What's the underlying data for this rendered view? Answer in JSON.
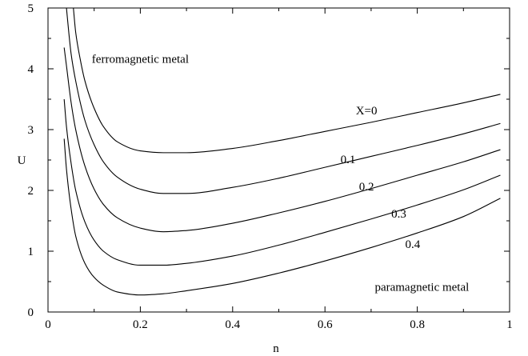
{
  "chart_data": {
    "type": "line",
    "title": "",
    "xlabel": "n",
    "ylabel": "U",
    "xlim": [
      0,
      1
    ],
    "ylim": [
      0,
      5
    ],
    "xticks": [
      "0",
      "0.2",
      "0.4",
      "0.6",
      "0.8",
      "1"
    ],
    "yticks": [
      "0",
      "1",
      "2",
      "3",
      "4",
      "5"
    ],
    "grid": false,
    "legend": "none",
    "series": [
      {
        "name": "X=0",
        "x": [
          0.055,
          0.06,
          0.07,
          0.08,
          0.1,
          0.12,
          0.15,
          0.2,
          0.25,
          0.3,
          0.4,
          0.5,
          0.6,
          0.7,
          0.8,
          0.9,
          0.98
        ],
        "y": [
          5.0,
          4.6,
          4.15,
          3.8,
          3.35,
          3.05,
          2.8,
          2.65,
          2.62,
          2.62,
          2.69,
          2.82,
          2.97,
          3.12,
          3.28,
          3.44,
          3.58
        ]
      },
      {
        "name": "0.1",
        "x": [
          0.04,
          0.045,
          0.05,
          0.06,
          0.08,
          0.1,
          0.12,
          0.15,
          0.2,
          0.25,
          0.3,
          0.4,
          0.5,
          0.6,
          0.7,
          0.8,
          0.9,
          0.98
        ],
        "y": [
          5.0,
          4.6,
          4.25,
          3.8,
          3.15,
          2.75,
          2.47,
          2.22,
          2.02,
          1.95,
          1.95,
          2.05,
          2.2,
          2.38,
          2.56,
          2.74,
          2.93,
          3.1
        ]
      },
      {
        "name": "0.2",
        "x": [
          0.035,
          0.04,
          0.05,
          0.06,
          0.08,
          0.1,
          0.12,
          0.15,
          0.2,
          0.25,
          0.3,
          0.4,
          0.5,
          0.6,
          0.7,
          0.8,
          0.9,
          0.98
        ],
        "y": [
          4.35,
          4.05,
          3.45,
          3.0,
          2.4,
          2.02,
          1.77,
          1.55,
          1.38,
          1.32,
          1.34,
          1.46,
          1.63,
          1.82,
          2.03,
          2.25,
          2.47,
          2.67
        ]
      },
      {
        "name": "0.3",
        "x": [
          0.035,
          0.04,
          0.05,
          0.06,
          0.08,
          0.1,
          0.12,
          0.15,
          0.2,
          0.25,
          0.3,
          0.4,
          0.5,
          0.6,
          0.7,
          0.8,
          0.9,
          0.98
        ],
        "y": [
          3.5,
          3.05,
          2.45,
          2.0,
          1.48,
          1.18,
          1.0,
          0.86,
          0.77,
          0.77,
          0.8,
          0.92,
          1.1,
          1.31,
          1.53,
          1.76,
          2.01,
          2.25
        ]
      },
      {
        "name": "0.4",
        "x": [
          0.035,
          0.04,
          0.05,
          0.06,
          0.08,
          0.1,
          0.12,
          0.15,
          0.2,
          0.25,
          0.3,
          0.4,
          0.5,
          0.6,
          0.7,
          0.8,
          0.9,
          0.98
        ],
        "y": [
          2.85,
          2.35,
          1.7,
          1.25,
          0.8,
          0.57,
          0.44,
          0.33,
          0.28,
          0.3,
          0.35,
          0.47,
          0.64,
          0.84,
          1.06,
          1.3,
          1.57,
          1.87
        ]
      }
    ],
    "annotations": [
      {
        "text": "ferromagnetic metal",
        "x": 0.2,
        "y": 4.1
      },
      {
        "text": "X=0",
        "x": 0.69,
        "y": 3.25
      },
      {
        "text": "0.1",
        "x": 0.65,
        "y": 2.45
      },
      {
        "text": "0.2",
        "x": 0.69,
        "y": 2.0
      },
      {
        "text": "0.3",
        "x": 0.76,
        "y": 1.55
      },
      {
        "text": "0.4",
        "x": 0.79,
        "y": 1.05
      },
      {
        "text": "paramagnetic metal",
        "x": 0.81,
        "y": 0.35
      }
    ]
  }
}
